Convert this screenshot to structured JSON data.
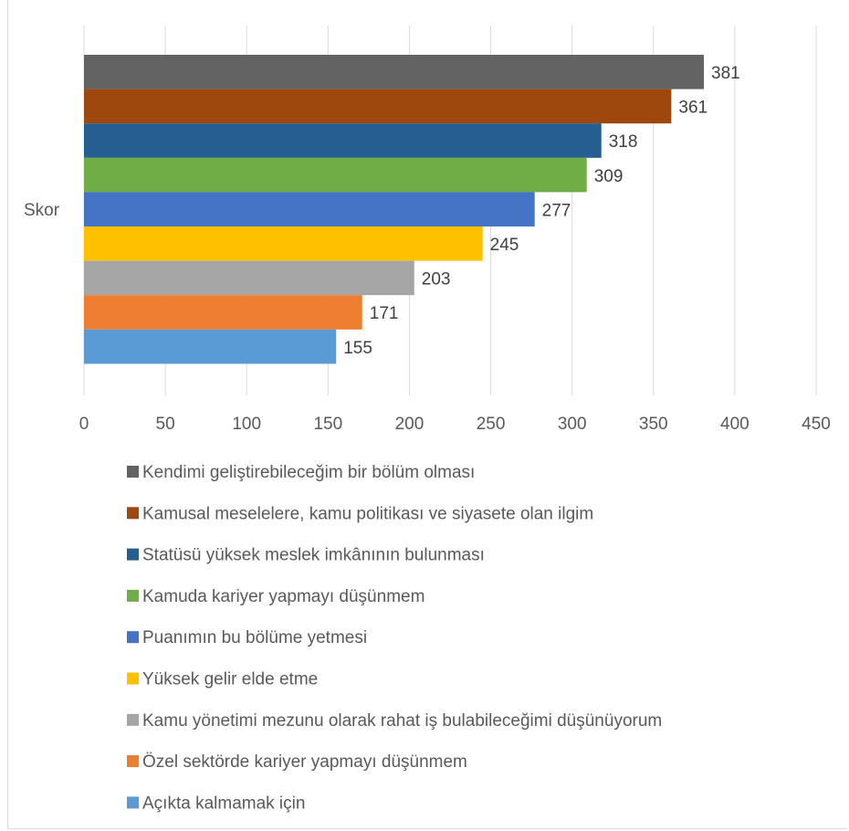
{
  "chart_data": {
    "type": "bar",
    "orientation": "horizontal",
    "categories": [
      "Skor"
    ],
    "series": [
      {
        "name": "Kendimi geliştirebileceğim bir bölüm olması",
        "values": [
          381
        ],
        "color": "#636363"
      },
      {
        "name": "Kamusal meselelere, kamu politikası ve siyasete olan ilgim",
        "values": [
          361
        ],
        "color": "#9E480E"
      },
      {
        "name": "Statüsü yüksek meslek imkânının bulunması",
        "values": [
          318
        ],
        "color": "#255E91"
      },
      {
        "name": "Kamuda kariyer yapmayı düşünmem",
        "values": [
          309
        ],
        "color": "#70AD47"
      },
      {
        "name": "Puanımın bu bölüme yetmesi",
        "values": [
          277
        ],
        "color": "#4472C4"
      },
      {
        "name": "Yüksek gelir elde etme",
        "values": [
          245
        ],
        "color": "#FFC000"
      },
      {
        "name": "Kamu yönetimi mezunu olarak rahat iş bulabileceğimi düşünüyorum",
        "values": [
          203
        ],
        "color": "#A5A5A5"
      },
      {
        "name": "Özel sektörde kariyer yapmayı düşünmem",
        "values": [
          171
        ],
        "color": "#ED7D31"
      },
      {
        "name": "Açıkta kalmamak için",
        "values": [
          155
        ],
        "color": "#5B9BD5"
      }
    ],
    "xlim": [
      0,
      450
    ],
    "xticks": [
      0,
      50,
      100,
      150,
      200,
      250,
      300,
      350,
      400,
      450
    ],
    "grid": true,
    "legend_position": "bottom",
    "data_labels": true,
    "title": "",
    "xlabel": "",
    "ylabel": ""
  }
}
